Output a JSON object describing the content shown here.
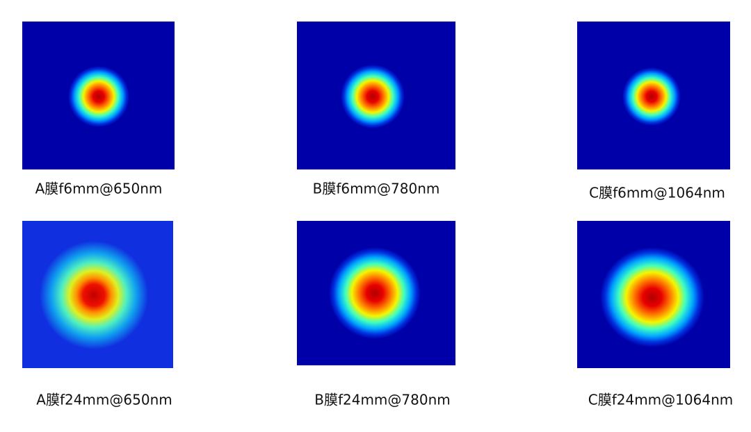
{
  "panels": [
    {
      "caption": "A膜f6mm@650nm"
    },
    {
      "caption": "B膜f6mm@780nm"
    },
    {
      "caption": "C膜f6mm@1064nm"
    },
    {
      "caption": "A膜f24mm@650nm"
    },
    {
      "caption": "B膜f24mm@780nm"
    },
    {
      "caption": "C膜f24mm@1064nm"
    }
  ]
}
